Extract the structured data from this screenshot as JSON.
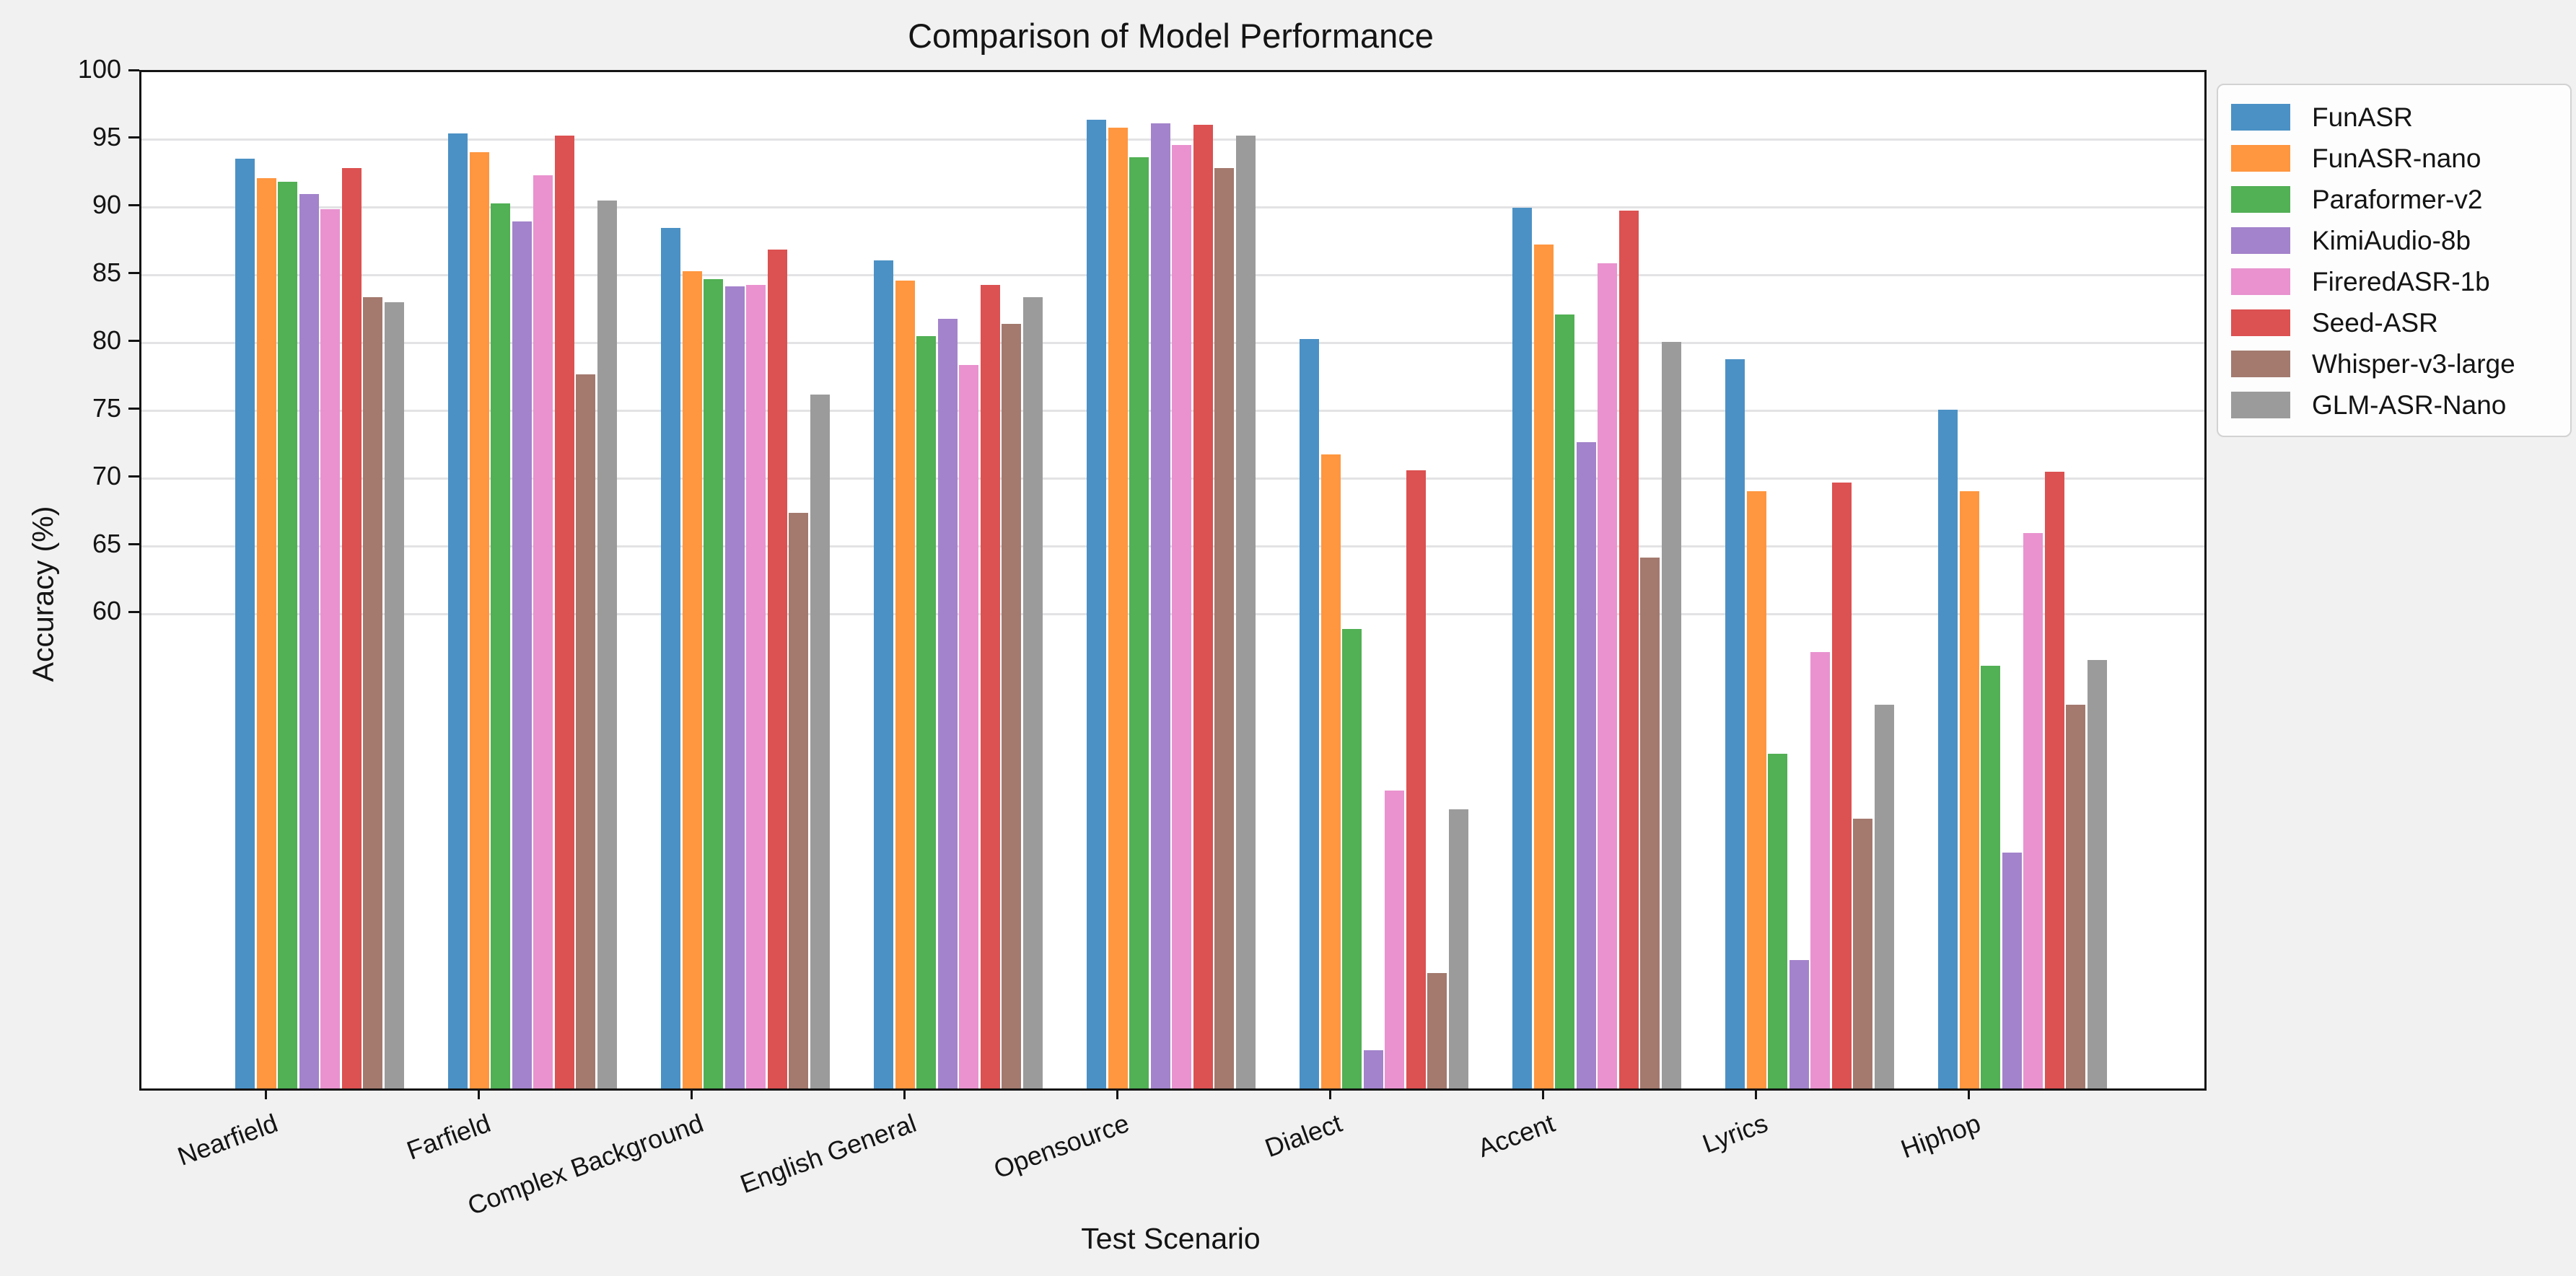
{
  "figure": {
    "background": "#f1f1f2",
    "plot_background": "#ffffff",
    "spine_color": "#141414",
    "grid_color": "#e3e3e5"
  },
  "chart_data": {
    "type": "bar",
    "title": "Comparison of Model Performance",
    "xlabel": "Test Scenario",
    "ylabel": "Accuracy (%)",
    "ylim": [
      25,
      100
    ],
    "yticks": [
      100,
      95,
      90,
      85,
      80,
      75,
      70,
      65,
      60
    ],
    "grid": "horizontal-at-labeled-ticks-only",
    "legend_position": "outside-top-right",
    "x_label_rotation_deg": 20,
    "categories": [
      "Nearfield",
      "Farfield",
      "Complex Background",
      "English General",
      "Opensource",
      "Dialect",
      "Accent",
      "Lyrics",
      "Hiphop"
    ],
    "series": [
      {
        "name": "FunASR",
        "color": "#4B91C6",
        "values": [
          93.6,
          95.5,
          88.5,
          86.1,
          96.5,
          80.3,
          90.0,
          78.8,
          75.1
        ]
      },
      {
        "name": "FunASR-nano",
        "color": "#FF9640",
        "values": [
          92.2,
          94.1,
          85.3,
          84.6,
          95.9,
          71.8,
          87.3,
          69.1,
          69.1
        ]
      },
      {
        "name": "Paraformer-v2",
        "color": "#52B055",
        "values": [
          91.9,
          90.3,
          84.7,
          80.5,
          93.7,
          58.9,
          82.1,
          49.7,
          56.2
        ]
      },
      {
        "name": "KimiAudio-8b",
        "color": "#A383CB",
        "values": [
          91.0,
          89.0,
          84.2,
          81.8,
          96.2,
          27.8,
          72.7,
          34.5,
          42.4
        ]
      },
      {
        "name": "FireredASR-1b",
        "color": "#E992CF",
        "values": [
          89.9,
          92.4,
          84.3,
          78.4,
          94.6,
          47.0,
          85.9,
          57.2,
          66.0
        ]
      },
      {
        "name": "Seed-ASR",
        "color": "#DC5152",
        "values": [
          92.9,
          95.3,
          86.9,
          84.3,
          96.1,
          70.6,
          89.8,
          69.7,
          70.5
        ]
      },
      {
        "name": "Whisper-v3-large",
        "color": "#A47A6F",
        "values": [
          83.4,
          77.7,
          67.5,
          81.4,
          92.9,
          33.5,
          64.2,
          44.9,
          53.3
        ]
      },
      {
        "name": "GLM-ASR-Nano",
        "color": "#9B9B9B",
        "values": [
          83.0,
          90.5,
          76.2,
          83.4,
          95.3,
          45.6,
          80.1,
          53.3,
          56.6
        ]
      }
    ]
  }
}
